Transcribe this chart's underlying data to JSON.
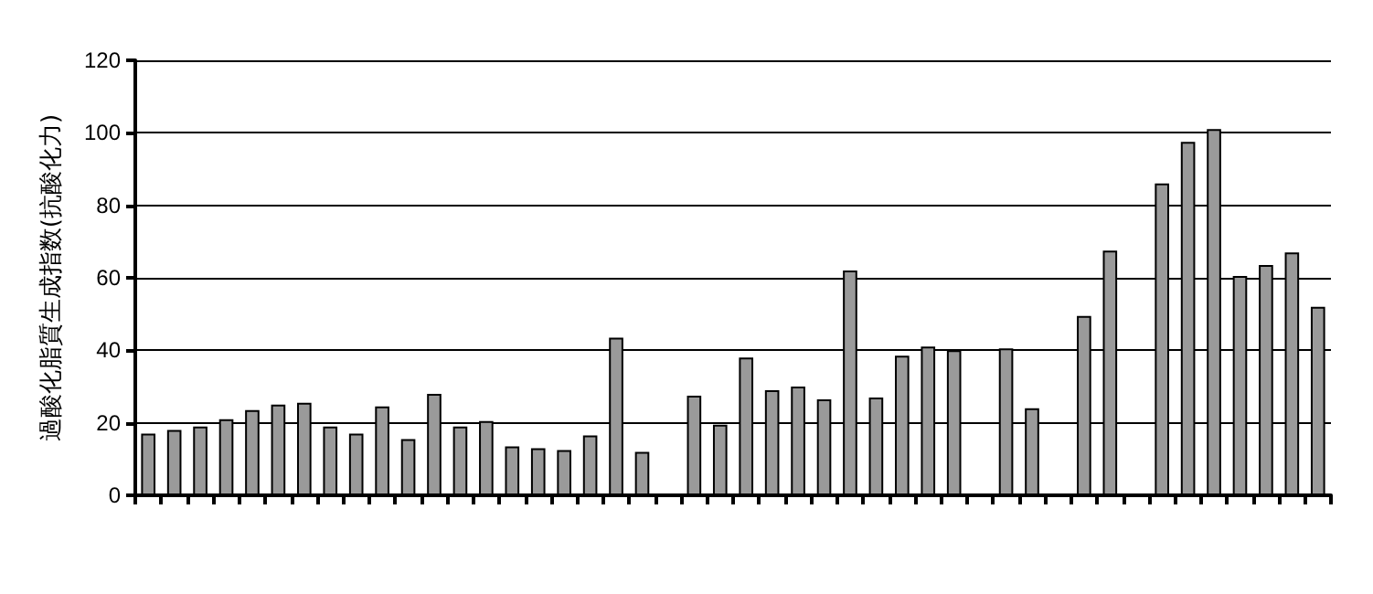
{
  "chart_data": {
    "type": "bar",
    "ylabel": "過酸化脂質生成指数(抗酸化力)",
    "categories": [
      null,
      null,
      null,
      null,
      null,
      null,
      null,
      null,
      null,
      null,
      null,
      null,
      null,
      null,
      null,
      null,
      null,
      null,
      null,
      null,
      null,
      null,
      null,
      null,
      null,
      null,
      null,
      null,
      null,
      null,
      null,
      null,
      null,
      null,
      null,
      null,
      null,
      null,
      null,
      null,
      null,
      null,
      null,
      null,
      null,
      null
    ],
    "values": [
      17,
      18,
      19,
      21,
      23.5,
      25,
      25.5,
      19,
      17,
      24.5,
      15.5,
      28,
      19,
      20.5,
      13.5,
      13,
      12.5,
      16.5,
      43.5,
      12,
      null,
      27.5,
      19.5,
      38,
      29,
      30,
      26.5,
      62,
      27,
      38.5,
      41,
      40,
      null,
      40.5,
      24,
      null,
      49.5,
      67.5,
      null,
      86,
      97.5,
      101,
      60.5,
      63.5,
      67,
      52
    ],
    "color": "#9a9a9a",
    "ylim": [
      0,
      120
    ],
    "yticks": [
      0,
      20,
      40,
      60,
      80,
      100,
      120
    ],
    "grid": "y",
    "tick_labels": "y"
  }
}
